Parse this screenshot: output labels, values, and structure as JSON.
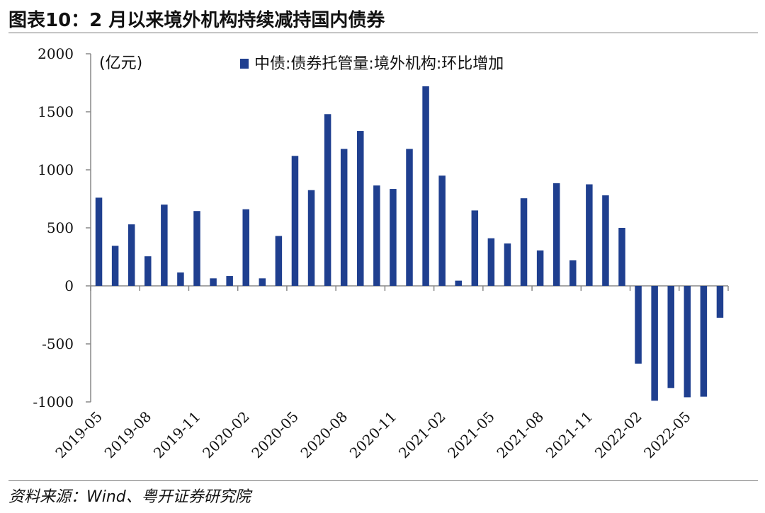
{
  "figure": {
    "title": "图表10：2 月以来境外机构持续减持国内债券",
    "source": "资料来源：Wind、粤开证券研究院"
  },
  "colors": {
    "bar": "#1f3f8f",
    "axis": "#888888",
    "rule": "#777777"
  },
  "chart_data": {
    "type": "bar",
    "unit": "(亿元)",
    "legend": "中债:债券托管量:境外机构:环比增加",
    "legend_placement": "top",
    "grid": false,
    "ylim": [
      -1000,
      2000
    ],
    "yticks": [
      2000,
      1500,
      1000,
      500,
      0,
      -500,
      -1000
    ],
    "xtick_labels": [
      "2019-05",
      "2019-08",
      "2019-11",
      "2020-02",
      "2020-05",
      "2020-08",
      "2020-11",
      "2021-02",
      "2021-05",
      "2021-08",
      "2021-11",
      "2022-02",
      "2022-05"
    ],
    "categories": [
      "2019-05",
      "2019-06",
      "2019-07",
      "2019-08",
      "2019-09",
      "2019-10",
      "2019-11",
      "2019-12",
      "2020-01",
      "2020-02",
      "2020-03",
      "2020-04",
      "2020-05",
      "2020-06",
      "2020-07",
      "2020-08",
      "2020-09",
      "2020-10",
      "2020-11",
      "2020-12",
      "2021-01",
      "2021-02",
      "2021-03",
      "2021-04",
      "2021-05",
      "2021-06",
      "2021-07",
      "2021-08",
      "2021-09",
      "2021-10",
      "2021-11",
      "2021-12",
      "2022-01",
      "2022-02",
      "2022-03",
      "2022-04",
      "2022-05",
      "2022-06",
      "2022-07"
    ],
    "series": [
      {
        "name": "中债:债券托管量:境外机构:环比增加",
        "values": [
          760,
          345,
          530,
          255,
          700,
          115,
          645,
          65,
          85,
          660,
          65,
          430,
          1120,
          825,
          1480,
          1180,
          1335,
          865,
          835,
          1180,
          1720,
          950,
          45,
          650,
          410,
          365,
          755,
          305,
          885,
          220,
          875,
          780,
          500,
          -670,
          -990,
          -880,
          -960,
          -955,
          -275
        ]
      }
    ]
  }
}
